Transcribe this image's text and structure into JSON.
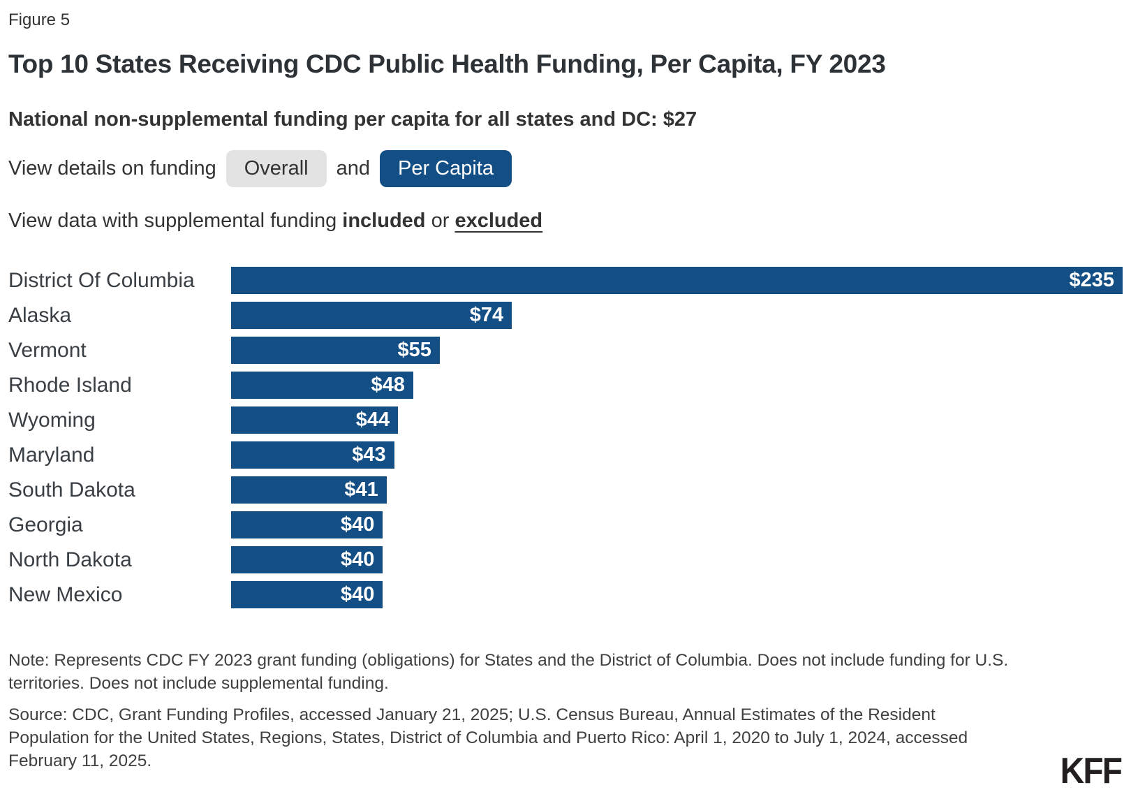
{
  "figure_label": "Figure 5",
  "title": "Top 10 States Receiving CDC Public Health Funding, Per Capita, FY 2023",
  "subtitle": "National non-supplemental funding per capita for all states and DC: $27",
  "controls": {
    "funding_view_prefix": "View details on funding",
    "overall_label": "Overall",
    "and_label": "and",
    "per_capita_label": "Per Capita",
    "supplemental_prefix": "View data with supplemental funding",
    "included_label": "included",
    "or_label": "or",
    "excluded_label": "excluded"
  },
  "chart_data": {
    "type": "bar",
    "orientation": "horizontal",
    "title": "Top 10 States Receiving CDC Public Health Funding, Per Capita, FY 2023",
    "categories": [
      "District Of Columbia",
      "Alaska",
      "Vermont",
      "Rhode Island",
      "Wyoming",
      "Maryland",
      "South Dakota",
      "Georgia",
      "North Dakota",
      "New Mexico"
    ],
    "values": [
      235,
      74,
      55,
      48,
      44,
      43,
      41,
      40,
      40,
      40
    ],
    "value_labels": [
      "$235",
      "$74",
      "$55",
      "$48",
      "$44",
      "$43",
      "$41",
      "$40",
      "$40",
      "$40"
    ],
    "xlim": [
      0,
      235
    ],
    "grid": false,
    "legend": "none",
    "bar_color": "#134e85",
    "value_label_color": "#ffffff"
  },
  "note": "Note: Represents CDC FY 2023 grant funding (obligations) for States and the District of Columbia. Does not include funding for U.S. territories. Does not include supplemental funding.",
  "source": "Source: CDC, Grant Funding Profiles, accessed January 21, 2025; U.S. Census Bureau, Annual Estimates of the Resident Population for the United States, Regions, States, District of Columbia and Puerto Rico: April 1, 2020 to July 1, 2024, accessed February 11, 2025.",
  "logo": "KFF",
  "colors": {
    "accent_blue": "#134e85",
    "button_gray": "#e3e3e3",
    "text_dark": "#333333"
  }
}
